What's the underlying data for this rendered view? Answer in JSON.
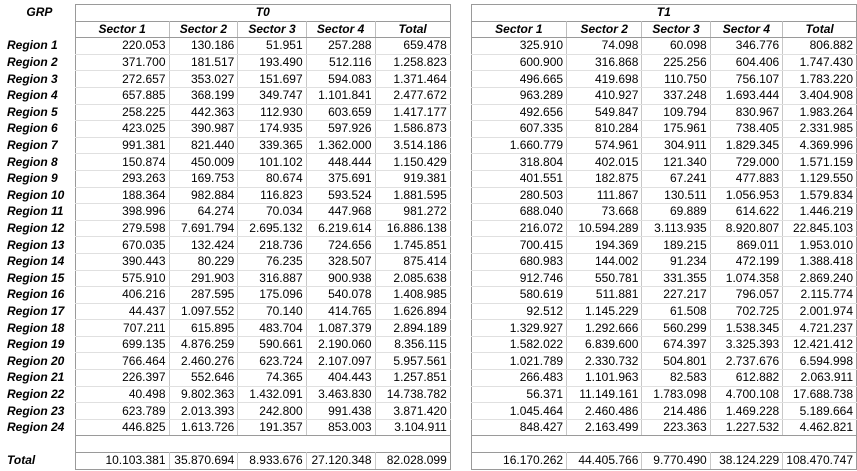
{
  "corner_label": "GRP",
  "periods": [
    "T0",
    "T1"
  ],
  "columns": [
    "Sector 1",
    "Sector 2",
    "Sector 3",
    "Sector 4",
    "Total"
  ],
  "rows": [
    {
      "label": "Region 1",
      "t0": [
        "220.053",
        "130.186",
        "51.951",
        "257.288",
        "659.478"
      ],
      "t1": [
        "325.910",
        "74.098",
        "60.098",
        "346.776",
        "806.882"
      ]
    },
    {
      "label": "Region 2",
      "t0": [
        "371.700",
        "181.517",
        "193.490",
        "512.116",
        "1.258.823"
      ],
      "t1": [
        "600.900",
        "316.868",
        "225.256",
        "604.406",
        "1.747.430"
      ]
    },
    {
      "label": "Region 3",
      "t0": [
        "272.657",
        "353.027",
        "151.697",
        "594.083",
        "1.371.464"
      ],
      "t1": [
        "496.665",
        "419.698",
        "110.750",
        "756.107",
        "1.783.220"
      ]
    },
    {
      "label": "Region 4",
      "t0": [
        "657.885",
        "368.199",
        "349.747",
        "1.101.841",
        "2.477.672"
      ],
      "t1": [
        "963.289",
        "410.927",
        "337.248",
        "1.693.444",
        "3.404.908"
      ]
    },
    {
      "label": "Region 5",
      "t0": [
        "258.225",
        "442.363",
        "112.930",
        "603.659",
        "1.417.177"
      ],
      "t1": [
        "492.656",
        "549.847",
        "109.794",
        "830.967",
        "1.983.264"
      ]
    },
    {
      "label": "Region 6",
      "t0": [
        "423.025",
        "390.987",
        "174.935",
        "597.926",
        "1.586.873"
      ],
      "t1": [
        "607.335",
        "810.284",
        "175.961",
        "738.405",
        "2.331.985"
      ]
    },
    {
      "label": "Region 7",
      "t0": [
        "991.381",
        "821.440",
        "339.365",
        "1.362.000",
        "3.514.186"
      ],
      "t1": [
        "1.660.779",
        "574.961",
        "304.911",
        "1.829.345",
        "4.369.996"
      ]
    },
    {
      "label": "Region 8",
      "t0": [
        "150.874",
        "450.009",
        "101.102",
        "448.444",
        "1.150.429"
      ],
      "t1": [
        "318.804",
        "402.015",
        "121.340",
        "729.000",
        "1.571.159"
      ]
    },
    {
      "label": "Region 9",
      "t0": [
        "293.263",
        "169.753",
        "80.674",
        "375.691",
        "919.381"
      ],
      "t1": [
        "401.551",
        "182.875",
        "67.241",
        "477.883",
        "1.129.550"
      ]
    },
    {
      "label": "Region 10",
      "t0": [
        "188.364",
        "982.884",
        "116.823",
        "593.524",
        "1.881.595"
      ],
      "t1": [
        "280.503",
        "111.867",
        "130.511",
        "1.056.953",
        "1.579.834"
      ]
    },
    {
      "label": "Region 11",
      "t0": [
        "398.996",
        "64.274",
        "70.034",
        "447.968",
        "981.272"
      ],
      "t1": [
        "688.040",
        "73.668",
        "69.889",
        "614.622",
        "1.446.219"
      ]
    },
    {
      "label": "Region 12",
      "t0": [
        "279.598",
        "7.691.794",
        "2.695.132",
        "6.219.614",
        "16.886.138"
      ],
      "t1": [
        "216.072",
        "10.594.289",
        "3.113.935",
        "8.920.807",
        "22.845.103"
      ]
    },
    {
      "label": "Region 13",
      "t0": [
        "670.035",
        "132.424",
        "218.736",
        "724.656",
        "1.745.851"
      ],
      "t1": [
        "700.415",
        "194.369",
        "189.215",
        "869.011",
        "1.953.010"
      ]
    },
    {
      "label": "Region 14",
      "t0": [
        "390.443",
        "80.229",
        "76.235",
        "328.507",
        "875.414"
      ],
      "t1": [
        "680.983",
        "144.002",
        "91.234",
        "472.199",
        "1.388.418"
      ]
    },
    {
      "label": "Region 15",
      "t0": [
        "575.910",
        "291.903",
        "316.887",
        "900.938",
        "2.085.638"
      ],
      "t1": [
        "912.746",
        "550.781",
        "331.355",
        "1.074.358",
        "2.869.240"
      ]
    },
    {
      "label": "Region 16",
      "t0": [
        "406.216",
        "287.595",
        "175.096",
        "540.078",
        "1.408.985"
      ],
      "t1": [
        "580.619",
        "511.881",
        "227.217",
        "796.057",
        "2.115.774"
      ]
    },
    {
      "label": "Region 17",
      "t0": [
        "44.437",
        "1.097.552",
        "70.140",
        "414.765",
        "1.626.894"
      ],
      "t1": [
        "92.512",
        "1.145.229",
        "61.508",
        "702.725",
        "2.001.974"
      ]
    },
    {
      "label": "Region 18",
      "t0": [
        "707.211",
        "615.895",
        "483.704",
        "1.087.379",
        "2.894.189"
      ],
      "t1": [
        "1.329.927",
        "1.292.666",
        "560.299",
        "1.538.345",
        "4.721.237"
      ]
    },
    {
      "label": "Region 19",
      "t0": [
        "699.135",
        "4.876.259",
        "590.661",
        "2.190.060",
        "8.356.115"
      ],
      "t1": [
        "1.582.022",
        "6.839.600",
        "674.397",
        "3.325.393",
        "12.421.412"
      ]
    },
    {
      "label": "Region 20",
      "t0": [
        "766.464",
        "2.460.276",
        "623.724",
        "2.107.097",
        "5.957.561"
      ],
      "t1": [
        "1.021.789",
        "2.330.732",
        "504.801",
        "2.737.676",
        "6.594.998"
      ]
    },
    {
      "label": "Region 21",
      "t0": [
        "226.397",
        "552.646",
        "74.365",
        "404.443",
        "1.257.851"
      ],
      "t1": [
        "266.483",
        "1.101.963",
        "82.583",
        "612.882",
        "2.063.911"
      ]
    },
    {
      "label": "Region 22",
      "t0": [
        "40.498",
        "9.802.363",
        "1.432.091",
        "3.463.830",
        "14.738.782"
      ],
      "t1": [
        "56.371",
        "11.149.161",
        "1.783.098",
        "4.700.108",
        "17.688.738"
      ]
    },
    {
      "label": "Region 23",
      "t0": [
        "623.789",
        "2.013.393",
        "242.800",
        "991.438",
        "3.871.420"
      ],
      "t1": [
        "1.045.464",
        "2.460.486",
        "214.486",
        "1.469.228",
        "5.189.664"
      ]
    },
    {
      "label": "Region 24",
      "t0": [
        "446.825",
        "1.613.726",
        "191.357",
        "853.003",
        "3.104.911"
      ],
      "t1": [
        "848.427",
        "2.163.499",
        "223.363",
        "1.227.532",
        "4.462.821"
      ]
    }
  ],
  "total_row": {
    "label": "Total",
    "t0": [
      "10.103.381",
      "35.870.694",
      "8.933.676",
      "27.120.348",
      "82.028.099"
    ],
    "t1": [
      "16.170.262",
      "44.405.766",
      "9.770.490",
      "38.124.229",
      "108.470.747"
    ]
  }
}
